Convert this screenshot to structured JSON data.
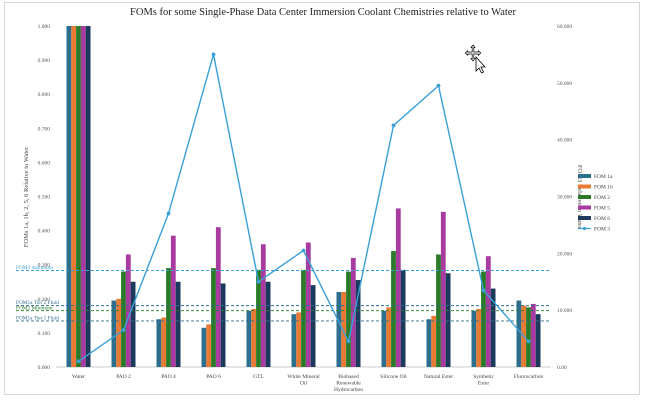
{
  "chart_data": {
    "type": "bar",
    "title": "FOMs for some Single-Phase Data Center Immersion Coolant Chemistries relative to Water",
    "ylabel": "FOMs 1a, 1b, 2, 5, 6 Relative to Water",
    "y2label": "FOM3 Relative to Water",
    "ylim": [
      0,
      1.0
    ],
    "y2lim": [
      0,
      60
    ],
    "yticks": [
      "0.000",
      "0.100",
      "0.200",
      "0.300",
      "0.400",
      "0.500",
      "0.600",
      "0.700",
      "0.800",
      "0.900",
      "1.000"
    ],
    "y2ticks": [
      "0.00",
      "10.000",
      "20.000",
      "30.000",
      "40.000",
      "50.000",
      "60.000"
    ],
    "grid": false,
    "legend_position": "right",
    "categories": [
      "Water",
      "PAO 2",
      "PAO 4",
      "PAO 6",
      "GTL",
      "White Mineral Oil",
      "Biobased Renewable Hydrocarbon",
      "Silicone Oil",
      "Natural Ester",
      "Synthetic Ester",
      "Fluorocarbon"
    ],
    "series": [
      {
        "name": "FOM 1a",
        "kind": "bar",
        "color": "#2e6f8e",
        "values": [
          1.0,
          0.195,
          0.14,
          0.115,
          0.165,
          0.155,
          0.22,
          0.165,
          0.14,
          0.165,
          0.195
        ]
      },
      {
        "name": "FOM 1b",
        "kind": "bar",
        "color": "#e87a35",
        "values": [
          1.0,
          0.2,
          0.145,
          0.125,
          0.17,
          0.16,
          0.22,
          0.175,
          0.15,
          0.17,
          0.18
        ]
      },
      {
        "name": "FOM 2",
        "kind": "bar",
        "color": "#2a7a2a",
        "values": [
          1.0,
          0.28,
          0.29,
          0.29,
          0.285,
          0.285,
          0.28,
          0.34,
          0.33,
          0.28,
          0.175
        ]
      },
      {
        "name": "FOM 5",
        "kind": "bar",
        "color": "#a83aa0",
        "values": [
          1.0,
          0.33,
          0.385,
          0.41,
          0.36,
          0.365,
          0.32,
          0.465,
          0.455,
          0.325,
          0.185
        ]
      },
      {
        "name": "FOM 6",
        "kind": "bar",
        "color": "#1b3a5c",
        "values": [
          1.0,
          0.25,
          0.25,
          0.245,
          0.25,
          0.24,
          0.255,
          0.285,
          0.275,
          0.23,
          0.155
        ]
      },
      {
        "name": "FOM 3",
        "kind": "line",
        "axis": "right",
        "color": "#3aa0d8",
        "values": [
          1.0,
          6.5,
          27.0,
          55.0,
          15.0,
          20.5,
          4.5,
          42.5,
          49.5,
          13.5,
          4.5
        ]
      }
    ],
    "reference_lines": [
      {
        "label": "FOM3 maximum",
        "value": 0.283,
        "color": "#3aa0d8"
      },
      {
        "label": "FOM1a Tier 2 Fluid",
        "value": 0.18,
        "color": "#2e6f8e"
      },
      {
        "label": "FOM2 Minimum",
        "value": 0.165,
        "color": "#2a7a2a"
      },
      {
        "label": "FOM1a Tier 1 Fluid",
        "value": 0.135,
        "color": "#2e6f8e"
      }
    ]
  }
}
